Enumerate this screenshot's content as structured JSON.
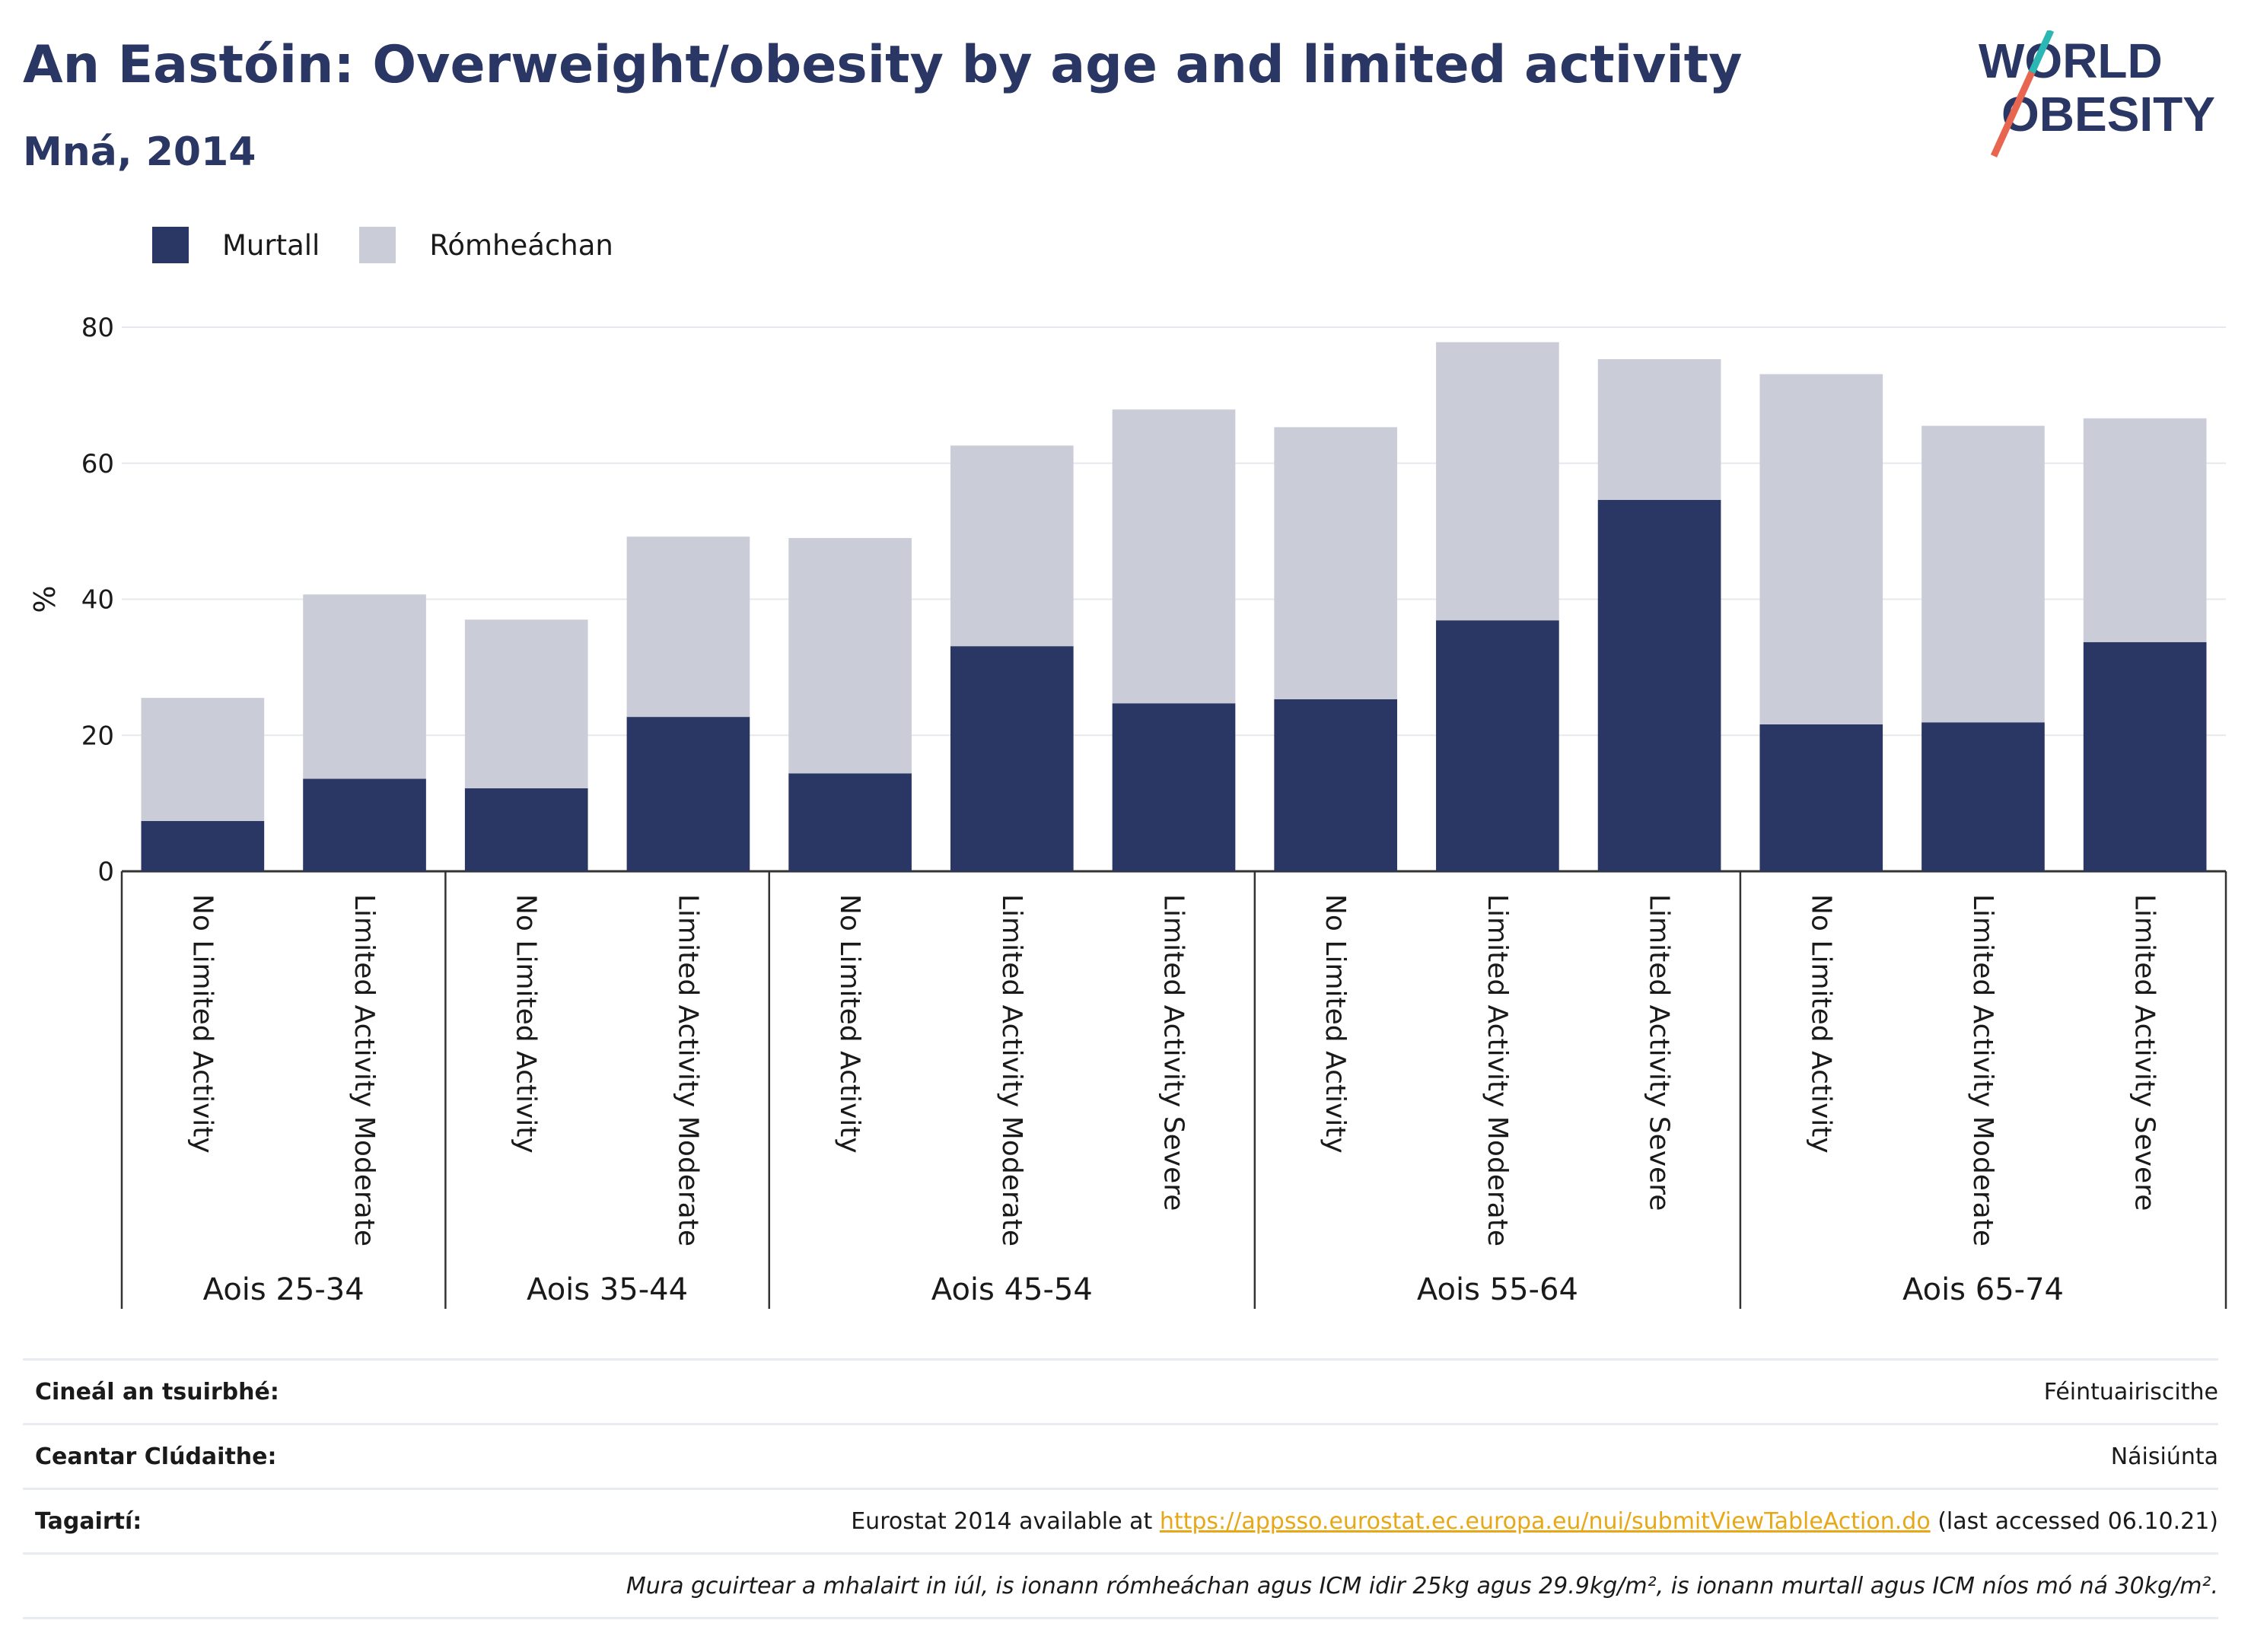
{
  "header": {
    "title": "An Eastóin: Overweight/obesity by age and limited activity",
    "subtitle": "Mná, 2014"
  },
  "logo": {
    "line1": "WORLD",
    "line2": "OBESITY"
  },
  "legend": [
    {
      "label": "Murtall",
      "color": "#2a3663"
    },
    {
      "label": "Rómheáchan",
      "color": "#cacdd8"
    }
  ],
  "chart_data": {
    "type": "bar",
    "stacked": true,
    "ylabel": "%",
    "ylim": [
      0,
      80
    ],
    "yticks": [
      0,
      20,
      40,
      60,
      80
    ],
    "grid": true,
    "legend_position": "top-left",
    "groups": [
      {
        "label": "Aois 25-34",
        "categories": [
          "No Limited Activity",
          "Limited Activity Moderate"
        ]
      },
      {
        "label": "Aois 35-44",
        "categories": [
          "No Limited Activity",
          "Limited Activity Moderate"
        ]
      },
      {
        "label": "Aois 45-54",
        "categories": [
          "No Limited Activity",
          "Limited Activity Moderate",
          "Limited Activity Severe"
        ]
      },
      {
        "label": "Aois 55-64",
        "categories": [
          "No Limited Activity",
          "Limited Activity Moderate",
          "Limited Activity Severe"
        ]
      },
      {
        "label": "Aois 65-74",
        "categories": [
          "No Limited Activity",
          "Limited Activity Moderate",
          "Limited Activity Severe"
        ]
      }
    ],
    "series": [
      {
        "name": "Murtall",
        "color": "#2a3663",
        "values": [
          7.4,
          13.6,
          12.2,
          22.7,
          14.4,
          33.1,
          24.7,
          25.3,
          36.9,
          54.6,
          21.6,
          21.9,
          33.7
        ]
      },
      {
        "name": "Rómheáchan",
        "color": "#cacdd8",
        "values": [
          18.1,
          27.1,
          24.8,
          26.5,
          34.6,
          29.5,
          43.2,
          40.0,
          40.9,
          20.7,
          51.5,
          43.6,
          32.9
        ]
      }
    ]
  },
  "info": [
    {
      "key": "Cineál an tsuirbhé:",
      "value": "Féintuairiscithe"
    },
    {
      "key": "Ceantar Clúdaithe:",
      "value": "Náisiúnta"
    },
    {
      "key": "Tagairtí:",
      "value_prefix": "Eurostat 2014 available at ",
      "link": "https://appsso.eurostat.ec.europa.eu/nui/submitViewTableAction.do",
      "value_suffix": " (last accessed 06.10.21)"
    },
    {
      "key": "",
      "value": "Mura gcuirtear a mhalairt in iúl, is ionann rómheáchan agus ICM idir 25kg agus 29.9kg/m², is ionann murtall agus ICM níos mó ná 30kg/m²."
    }
  ]
}
